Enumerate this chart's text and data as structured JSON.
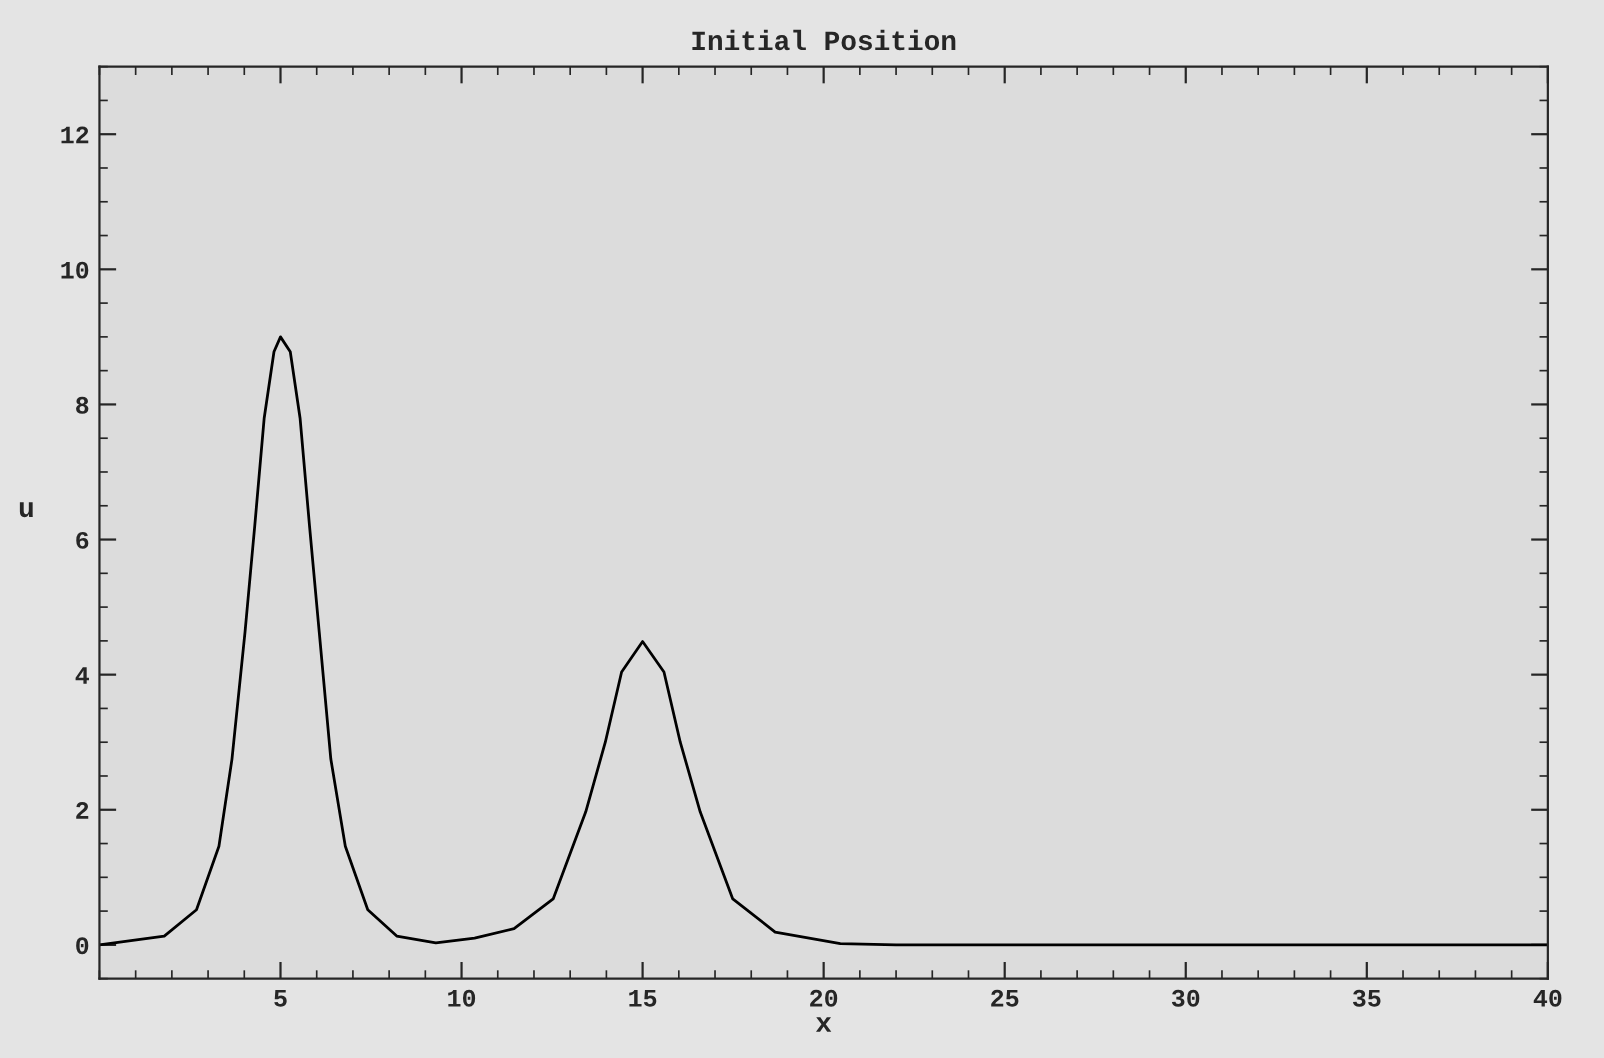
{
  "chart_data": {
    "type": "line",
    "title": "Initial Position",
    "xlabel": "x",
    "ylabel": "u",
    "xlim": [
      0,
      40
    ],
    "xticks": [
      5,
      10,
      15,
      20,
      25,
      30,
      35,
      40
    ],
    "ylim": [
      -0.5,
      13
    ],
    "yticks": [
      0,
      2,
      4,
      6,
      8,
      10,
      12
    ],
    "grid": false,
    "legend": false,
    "marker": "none",
    "line_style": "solid",
    "series": [
      {
        "color": "#000000",
        "x": [
          0,
          1.79,
          2.68,
          3.3,
          3.66,
          4.02,
          4.29,
          4.55,
          4.82,
          5.0,
          5.27,
          5.54,
          5.8,
          6.07,
          6.39,
          6.79,
          7.41,
          8.21,
          9.29,
          10.36,
          11.45,
          12.53,
          13.43,
          13.97,
          14.42,
          15.0,
          15.59,
          16.04,
          16.59,
          17.49,
          18.66,
          20.46,
          22,
          40
        ],
        "values": [
          0,
          0.13,
          0.52,
          1.46,
          2.75,
          4.63,
          6.21,
          7.8,
          8.78,
          9.0,
          8.78,
          7.8,
          6.21,
          4.63,
          2.75,
          1.46,
          0.52,
          0.13,
          0.03,
          0.1,
          0.24,
          0.68,
          1.97,
          3.0,
          4.04,
          4.49,
          4.04,
          3.0,
          1.97,
          0.68,
          0.19,
          0.02,
          0,
          0
        ]
      }
    ]
  }
}
